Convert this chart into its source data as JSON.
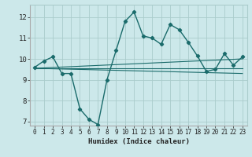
{
  "xlabel": "Humidex (Indice chaleur)",
  "ylabel": "",
  "background_color": "#cce8ea",
  "grid_color": "#aacccc",
  "line_color": "#1a6b6b",
  "xlim": [
    -0.5,
    23.5
  ],
  "ylim": [
    6.8,
    12.6
  ],
  "yticks": [
    7,
    8,
    9,
    10,
    11,
    12
  ],
  "xticks": [
    0,
    1,
    2,
    3,
    4,
    5,
    6,
    7,
    8,
    9,
    10,
    11,
    12,
    13,
    14,
    15,
    16,
    17,
    18,
    19,
    20,
    21,
    22,
    23
  ],
  "main_x": [
    0,
    1,
    2,
    3,
    4,
    5,
    6,
    7,
    8,
    9,
    10,
    11,
    12,
    13,
    14,
    15,
    16,
    17,
    18,
    19,
    20,
    21,
    22,
    23
  ],
  "main_y": [
    9.6,
    9.9,
    10.1,
    9.3,
    9.3,
    7.6,
    7.1,
    6.85,
    9.0,
    10.4,
    11.8,
    12.25,
    11.1,
    11.0,
    10.7,
    11.65,
    11.4,
    10.8,
    10.15,
    9.4,
    9.5,
    10.25,
    9.7,
    10.1
  ],
  "ref_lines": [
    {
      "x0": 0,
      "y0": 9.55,
      "x1": 23,
      "y1": 9.3
    },
    {
      "x0": 0,
      "y0": 9.55,
      "x1": 23,
      "y1": 9.55
    },
    {
      "x0": 0,
      "y0": 9.55,
      "x1": 23,
      "y1": 10.0
    }
  ]
}
